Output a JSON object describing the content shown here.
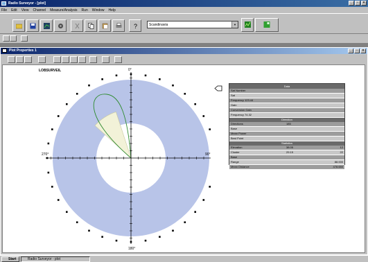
{
  "window": {
    "title": "Radio Surveyor - [plot]",
    "controls": [
      "_",
      "▫",
      "×"
    ]
  },
  "menu": [
    "File",
    "Edit",
    "View",
    "Channel",
    "Measure/Analysis",
    "Run",
    "Window",
    "Help"
  ],
  "toolbar": {
    "combo_value": "Scandinavia"
  },
  "child_window": {
    "title": "Plot Properties 1",
    "controls": [
      "_",
      "▫",
      "×"
    ]
  },
  "plot": {
    "title": "LOBSURVEIL",
    "angle_labels": {
      "top": "0°",
      "right": "90°",
      "bottom": "180°",
      "left": "270°"
    }
  },
  "info_panel": {
    "header": "Data",
    "rows": [
      {
        "label": "Sat Number"
      },
      {
        "label": "Sat"
      },
      {
        "label": "Frequency 123.44"
      },
      {
        "label": "Gain"
      },
      {
        "label": "Conversion Gain"
      },
      {
        "label": "Frequency 74.32"
      }
    ],
    "subheader1": "Direction",
    "rows2": [
      {
        "label": "Directions",
        "mid": "185"
      },
      {
        "label": "Base"
      },
      {
        "label": "Mean Power"
      },
      {
        "label": "Best Point"
      }
    ],
    "subheader2": "Statistics",
    "rows3": [
      {
        "label": "Elevation",
        "mid": "38.05",
        "value": "12"
      },
      {
        "label": "Cluster",
        "mid": "29.15",
        "value": "22"
      },
      {
        "label": "Base"
      },
      {
        "label": "Range",
        "value": "88.000"
      },
      {
        "label": "Mean Distance",
        "value": "478.650"
      }
    ]
  },
  "taskbar": {
    "start": "Start",
    "task": "Radio Surveyor - plot"
  },
  "colors": {
    "ring": "#b8c4e8",
    "sector": "#f2f2d8",
    "lobe": "#2e8b2e"
  }
}
